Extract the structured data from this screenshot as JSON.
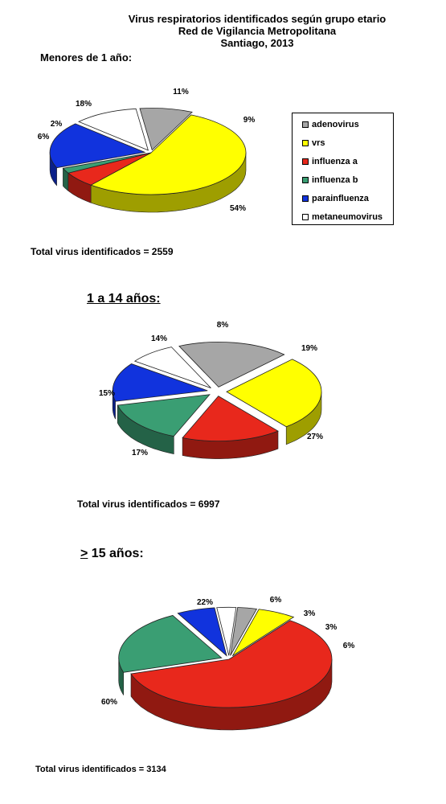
{
  "header": {
    "line1": "Virus respiratorios identificados según grupo etario",
    "line2": "Red de Vigilancia Metropolitana",
    "line3": "Santiago, 2013"
  },
  "sections": {
    "s1": {
      "label": "Menores de 1 año:",
      "total": "Total virus identificados = 2559"
    },
    "s2": {
      "label": "1 a 14 años:",
      "total": "Total  virus identificados = 6997"
    },
    "s3": {
      "label_symbol": ">",
      "label_rest": " 15 años:",
      "total": "Total virus identificados = 3134"
    }
  },
  "legend": [
    {
      "name": "adenovirus",
      "color": "#a6a6a6"
    },
    {
      "name": "vrs",
      "color": "#ffff00"
    },
    {
      "name": "influenza a",
      "color": "#e8281c"
    },
    {
      "name": "influenza b",
      "color": "#3a9e73"
    },
    {
      "name": "parainfluenza",
      "color": "#1133dd"
    },
    {
      "name": "metaneumovirus",
      "color": "#ffffff"
    }
  ],
  "chart_data": [
    {
      "type": "pie",
      "title": "Menores de 1 año:",
      "categories": [
        "adenovirus",
        "vrs",
        "influenza a",
        "influenza b",
        "parainfluenza",
        "metaneumovirus"
      ],
      "values": [
        9,
        54,
        6,
        2,
        18,
        11
      ],
      "labels": [
        "9%",
        "54%",
        "6%",
        "2%",
        "18%",
        "11%"
      ],
      "exploded": [
        "adenovirus",
        "parainfluenza",
        "metaneumovirus"
      ],
      "total": 2559
    },
    {
      "type": "pie",
      "title": "1 a 14 años:",
      "categories": [
        "adenovirus",
        "vrs",
        "influenza a",
        "influenza b",
        "parainfluenza",
        "metaneumovirus"
      ],
      "values": [
        19,
        27,
        17,
        15,
        14,
        8
      ],
      "labels": [
        "19%",
        "27%",
        "17%",
        "15%",
        "14%",
        "8%"
      ],
      "exploded": [
        "adenovirus",
        "vrs",
        "influenza a",
        "influenza b",
        "parainfluenza",
        "metaneumovirus"
      ],
      "total": 6997
    },
    {
      "type": "pie",
      "title": "> 15 años:",
      "categories": [
        "adenovirus",
        "vrs",
        "influenza a",
        "influenza b",
        "parainfluenza",
        "metaneumovirus"
      ],
      "values": [
        3,
        6,
        60,
        22,
        6,
        3
      ],
      "labels": [
        "3%",
        "6%",
        "60%",
        "22%",
        "6%",
        "3%"
      ],
      "exploded": [
        "adenovirus",
        "vrs",
        "influenza b",
        "parainfluenza",
        "metaneumovirus"
      ],
      "total": 3134
    }
  ]
}
